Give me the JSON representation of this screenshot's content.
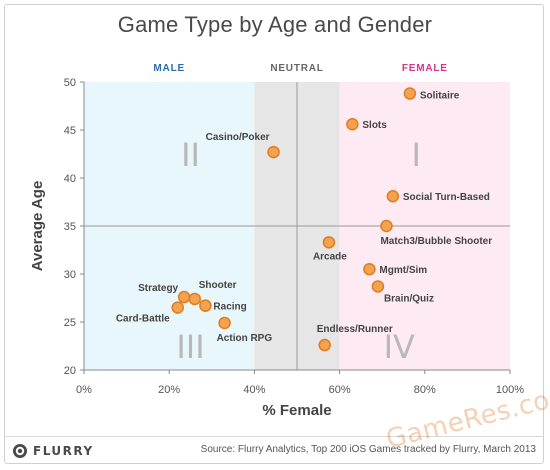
{
  "colors": {
    "male_zone": "#e8f7fb",
    "neutral_zone": "#e6e6e6",
    "female_zone": "#fdeaf3",
    "male_label": "#2b6da8",
    "female_label": "#d6368a",
    "neutral_label": "#666666",
    "point_fill": "#f3a34e",
    "point_stroke": "#e07c24"
  },
  "brand_name": "FLURRY",
  "source": "Source: Flurry Analytics, Top 200 iOS Games tracked by Flurry, March 2013",
  "watermark": "GameRes.com",
  "chart_data": {
    "type": "scatter",
    "title": "Game Type by Age and Gender",
    "xlabel": "% Female",
    "ylabel": "Average Age",
    "xlim": [
      0,
      100
    ],
    "ylim": [
      20,
      50
    ],
    "x_ticks": [
      "0%",
      "20%",
      "40%",
      "60%",
      "80%",
      "100%"
    ],
    "y_ticks": [
      20,
      25,
      30,
      35,
      40,
      45,
      50
    ],
    "zones": [
      {
        "label": "MALE",
        "x_range": [
          0,
          40
        ]
      },
      {
        "label": "NEUTRAL",
        "x_range": [
          40,
          60
        ]
      },
      {
        "label": "FEMALE",
        "x_range": [
          60,
          100
        ]
      }
    ],
    "quadrant_labels": [
      "I",
      "II",
      "III",
      "IV"
    ],
    "points": [
      {
        "label": "Solitaire",
        "x": 76.5,
        "y": 48.8
      },
      {
        "label": "Slots",
        "x": 63,
        "y": 45.6
      },
      {
        "label": "Casino/Poker",
        "x": 44.5,
        "y": 42.7
      },
      {
        "label": "Social Turn-Based",
        "x": 72.5,
        "y": 38.1
      },
      {
        "label": "Match3/Bubble Shooter",
        "x": 71,
        "y": 35.0
      },
      {
        "label": "Arcade",
        "x": 57.5,
        "y": 33.3
      },
      {
        "label": "Mgmt/Sim",
        "x": 67,
        "y": 30.5
      },
      {
        "label": "Brain/Quiz",
        "x": 69,
        "y": 28.7
      },
      {
        "label": "Strategy",
        "x": 23.5,
        "y": 27.6
      },
      {
        "label": "Shooter",
        "x": 26,
        "y": 27.4
      },
      {
        "label": "Racing",
        "x": 28.5,
        "y": 26.7
      },
      {
        "label": "Card-Battle",
        "x": 22,
        "y": 26.5
      },
      {
        "label": "Action RPG",
        "x": 33,
        "y": 24.9
      },
      {
        "label": "Endless/Runner",
        "x": 56.5,
        "y": 22.6
      }
    ]
  }
}
